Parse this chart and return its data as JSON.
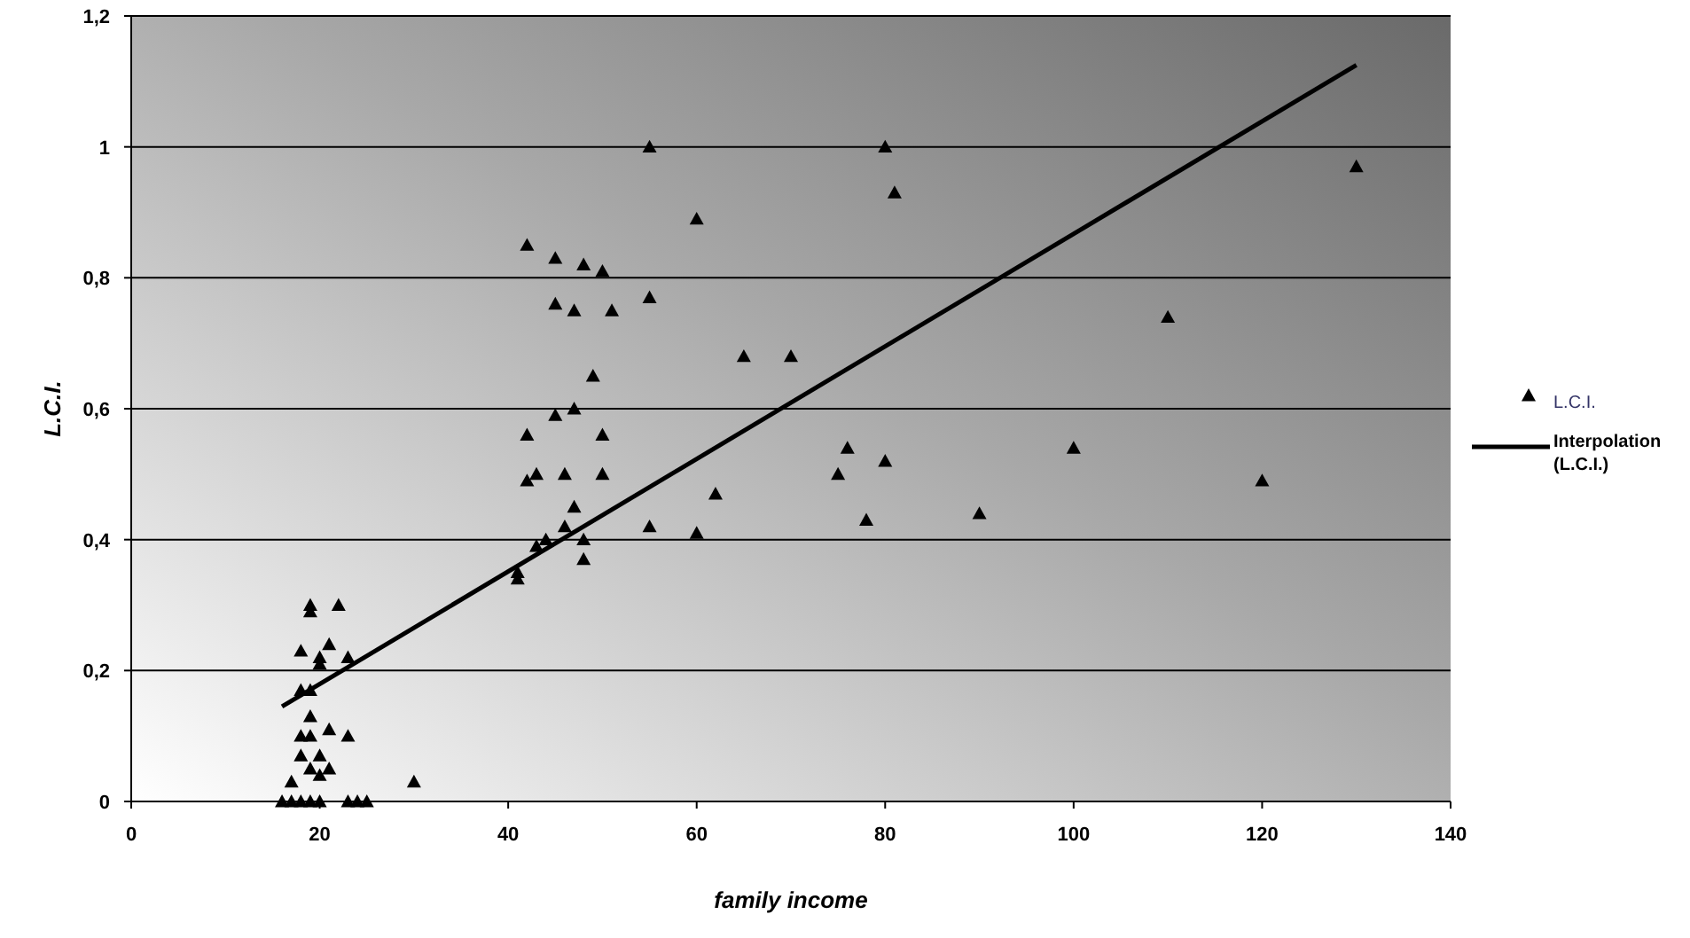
{
  "chart_data": {
    "type": "scatter",
    "xlabel": "family income",
    "ylabel": "L.C.I.",
    "xlim": [
      0,
      140
    ],
    "ylim": [
      0,
      1.2
    ],
    "xticks": [
      0,
      20,
      40,
      60,
      80,
      100,
      120,
      140
    ],
    "yticks": [
      0,
      {
        "value": 0.2,
        "label": "0,2"
      },
      {
        "value": 0.4,
        "label": "0,4"
      },
      {
        "value": 0.6,
        "label": "0,6"
      },
      {
        "value": 0.8,
        "label": "0,8"
      },
      1,
      {
        "value": 1.2,
        "label": "1,2"
      }
    ],
    "grid": "y",
    "legend": "right",
    "series": [
      {
        "name": "L.C.I.",
        "marker": "triangle",
        "color": "#000000",
        "x": [
          16,
          17,
          17,
          18,
          18,
          18,
          18,
          18,
          19,
          19,
          19,
          19,
          19,
          19,
          19,
          20,
          20,
          20,
          20,
          20,
          21,
          21,
          21,
          22,
          23,
          23,
          23,
          24,
          25,
          30,
          41,
          41,
          42,
          42,
          42,
          43,
          43,
          44,
          45,
          45,
          45,
          46,
          46,
          47,
          47,
          47,
          48,
          48,
          48,
          49,
          50,
          50,
          50,
          51,
          55,
          55,
          55,
          60,
          60,
          62,
          65,
          70,
          75,
          76,
          78,
          80,
          80,
          81,
          90,
          100,
          110,
          120,
          130
        ],
        "values": [
          0,
          0,
          0.03,
          0,
          0.07,
          0.1,
          0.17,
          0.23,
          0.3,
          0.29,
          0.17,
          0.13,
          0.1,
          0.05,
          0,
          0.04,
          0.07,
          0.22,
          0.21,
          0,
          0.11,
          0.05,
          0.24,
          0.3,
          0.1,
          0.22,
          0,
          0,
          0,
          0.03,
          0.35,
          0.34,
          0.85,
          0.56,
          0.49,
          0.5,
          0.39,
          0.4,
          0.83,
          0.76,
          0.59,
          0.5,
          0.42,
          0.6,
          0.75,
          0.45,
          0.82,
          0.4,
          0.37,
          0.65,
          0.81,
          0.56,
          0.5,
          0.75,
          1,
          0.77,
          0.42,
          0.89,
          0.41,
          0.47,
          0.68,
          0.68,
          0.5,
          0.54,
          0.43,
          1,
          0.52,
          0.93,
          0.44,
          0.54,
          0.74,
          0.49,
          0.97
        ]
      },
      {
        "name": "Interpolation (L.C.I.)",
        "type": "line",
        "marker": "none",
        "line_style": "solid",
        "color": "#000000",
        "x": [
          16,
          130
        ],
        "values": [
          0.145,
          1.125
        ]
      }
    ]
  }
}
